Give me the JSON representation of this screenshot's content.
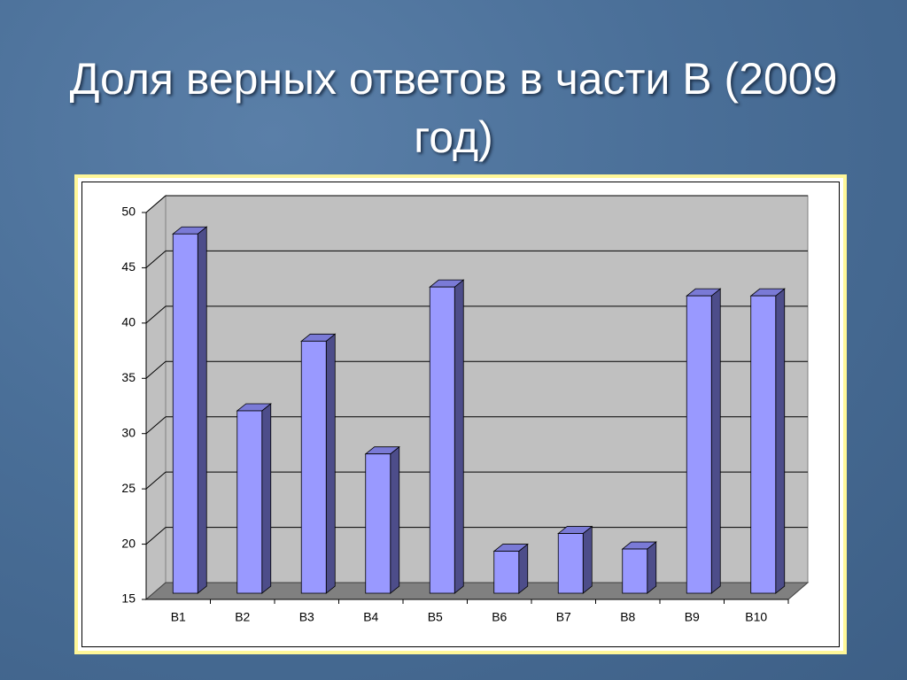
{
  "chart_data": {
    "type": "bar3d",
    "title": "Доля верных ответов в части В (2009 год)",
    "categories": [
      "B1",
      "B2",
      "B3",
      "B4",
      "B5",
      "B6",
      "B7",
      "B8",
      "B9",
      "B10"
    ],
    "values": [
      47.5,
      31.5,
      37.8,
      27.6,
      42.7,
      18.8,
      20.4,
      19,
      41.9,
      41.9
    ],
    "color": "#9999ff",
    "ylim": [
      15,
      50
    ],
    "yticks": [
      15,
      20,
      25,
      30,
      35,
      40,
      45,
      50
    ],
    "grid": true
  }
}
